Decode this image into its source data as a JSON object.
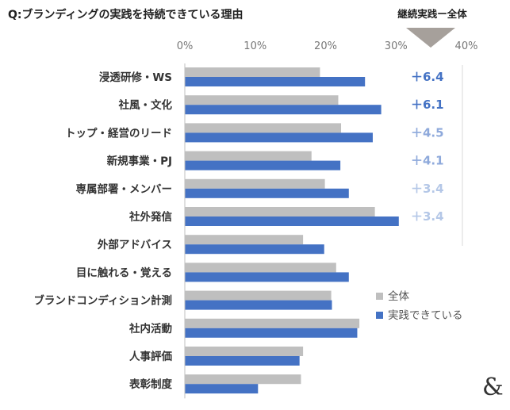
{
  "page": {
    "logo": "&"
  },
  "chart_data": {
    "type": "bar",
    "orientation": "horizontal",
    "title": "Q:ブランディングの実践を持続できている理由",
    "categories": [
      "浸透研修・WS",
      "社風・文化",
      "トップ・経営のリード",
      "新規事業・PJ",
      "専属部署・メンバー",
      "社外発信",
      "外部アドバイス",
      "目に触れる・覚える",
      "ブランドコンディション計測",
      "社内活動",
      "人事評価",
      "表彰制度"
    ],
    "series": [
      {
        "name": "全体",
        "color": "#bfbfbf",
        "values": [
          19.2,
          21.8,
          22.2,
          18.0,
          19.9,
          27.0,
          16.8,
          21.5,
          20.8,
          24.8,
          16.8,
          16.5
        ]
      },
      {
        "name": "実践できている",
        "color": "#4472c4",
        "values": [
          25.6,
          27.9,
          26.7,
          22.1,
          23.3,
          30.4,
          19.8,
          23.3,
          20.9,
          24.5,
          16.3,
          10.4
        ]
      }
    ],
    "xlim": [
      0,
      40
    ],
    "ticks": [
      "0%",
      "10%",
      "20%",
      "30%",
      "40%"
    ],
    "tick_values": [
      0,
      10,
      20,
      30,
      40
    ],
    "grid": false,
    "legend_position": "right",
    "difference_header": "継続実践ー全体",
    "differences": [
      {
        "label": "＋6.4",
        "color": "#4472c4"
      },
      {
        "label": "＋6.1",
        "color": "#4472c4"
      },
      {
        "label": "＋4.5",
        "color": "#8ea9db"
      },
      {
        "label": "＋4.1",
        "color": "#8ea9db"
      },
      {
        "label": "＋3.4",
        "color": "#b4c7e7"
      },
      {
        "label": "＋3.4",
        "color": "#b4c7e7"
      }
    ]
  }
}
